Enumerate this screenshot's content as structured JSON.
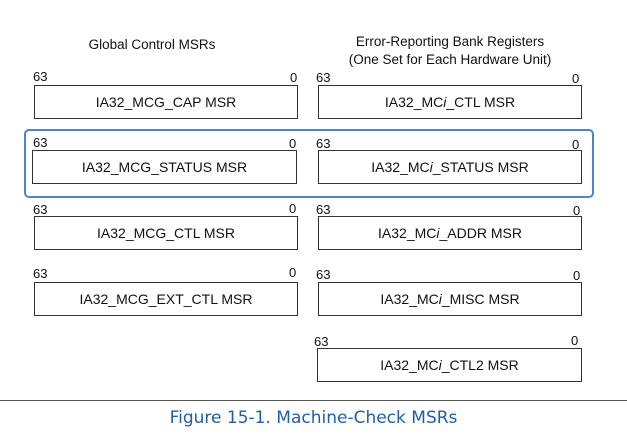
{
  "headings": {
    "left": "Global Control MSRs",
    "right_line1": "Error-Reporting Bank Registers",
    "right_line2": "(One Set for Each Hardware Unit)"
  },
  "bits": {
    "high": "63",
    "low": "0"
  },
  "left_registers": [
    {
      "pre": "IA32_MCG_CAP MSR",
      "italic": "",
      "post": ""
    },
    {
      "pre": "IA32_MCG_STATUS MSR",
      "italic": "",
      "post": ""
    },
    {
      "pre": "IA32_MCG_CTL MSR",
      "italic": "",
      "post": ""
    },
    {
      "pre": "IA32_MCG_EXT_CTL MSR",
      "italic": "",
      "post": ""
    }
  ],
  "right_registers": [
    {
      "pre": "IA32_MC",
      "italic": "i",
      "post": "_CTL MSR"
    },
    {
      "pre": "IA32_MC",
      "italic": "i",
      "post": "_STATUS MSR"
    },
    {
      "pre": "IA32_MC",
      "italic": "i",
      "post": "_ADDR MSR"
    },
    {
      "pre": "IA32_MC",
      "italic": "i",
      "post": "_MISC MSR"
    },
    {
      "pre": "IA32_MC",
      "italic": "i",
      "post": "_CTL2 MSR"
    }
  ],
  "caption": "Figure 15-1.  Machine-Check MSRs",
  "colors": {
    "highlight": "#4a86c8",
    "caption": "#1f5fa8"
  }
}
